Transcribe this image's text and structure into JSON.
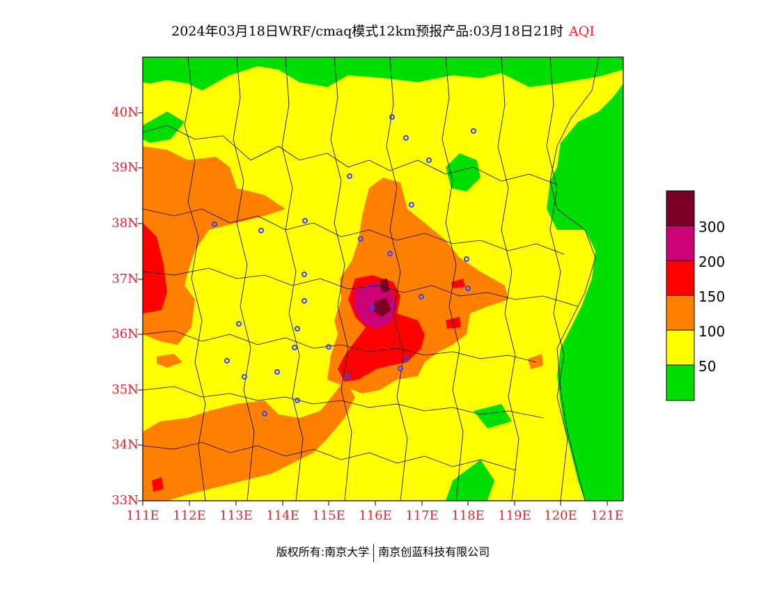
{
  "title": {
    "main": "2024年03月18日WRF/cmaq模式12km预报产品:03月18日21时",
    "product": "AQI"
  },
  "map": {
    "lon_ticks": [
      "111E",
      "112E",
      "113E",
      "114E",
      "115E",
      "116E",
      "117E",
      "118E",
      "119E",
      "120E",
      "121E"
    ],
    "lat_ticks": [
      "40N",
      "39N",
      "38N",
      "37N",
      "36N",
      "35N",
      "34N",
      "33N"
    ],
    "lon_range": [
      111,
      121.4
    ],
    "lat_range": [
      33,
      40.85
    ]
  },
  "legend": {
    "levels": [
      "300",
      "200",
      "150",
      "100",
      "50"
    ],
    "colors": {
      "good": "#00dd00",
      "moderate": "#ffff00",
      "usg": "#ff7f00",
      "unhealthy": "#ff0000",
      "very_unhealthy": "#cc0077",
      "hazardous": "#7a0025"
    }
  },
  "footer": {
    "copyright": "版权所有:南京大学",
    "company": "南京创蓝科技有限公司"
  }
}
